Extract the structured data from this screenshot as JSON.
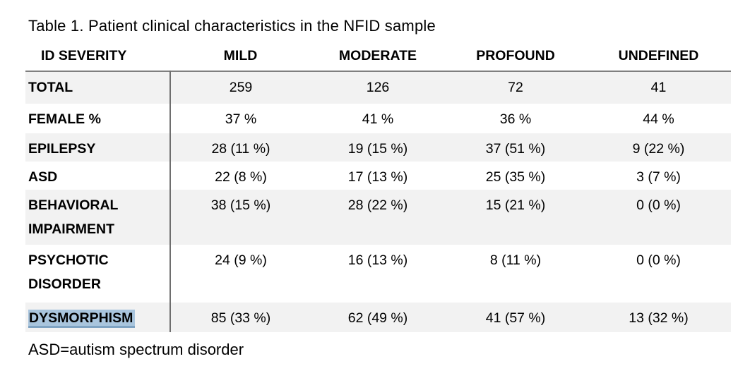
{
  "document": {
    "title": "Table 1. Patient clinical characteristics in the NFID sample",
    "footnote": "ASD=autism spectrum disorder"
  },
  "table": {
    "columns": [
      "ID SEVERITY",
      "MILD",
      "MODERATE",
      "PROFOUND",
      "UNDEFINED"
    ],
    "rows": [
      {
        "label": "TOTAL",
        "values": [
          "259",
          "126",
          "72",
          "41"
        ],
        "shaded": true,
        "highlighted": false
      },
      {
        "label": "FEMALE %",
        "values": [
          "37 %",
          "41 %",
          "36 %",
          "44 %"
        ],
        "shaded": false,
        "highlighted": false
      },
      {
        "label": "EPILEPSY",
        "values": [
          "28 (11 %)",
          "19 (15 %)",
          "37 (51 %)",
          "9 (22 %)"
        ],
        "shaded": true,
        "highlighted": false
      },
      {
        "label": "ASD",
        "values": [
          "22 (8 %)",
          "17 (13 %)",
          "25 (35 %)",
          "3 (7 %)"
        ],
        "shaded": false,
        "highlighted": false
      },
      {
        "label": "BEHAVIORAL IMPAIRMENT",
        "values": [
          "38 (15 %)",
          "28 (22 %)",
          "15 (21 %)",
          "0 (0 %)"
        ],
        "shaded": true,
        "highlighted": false
      },
      {
        "label": "PSYCHOTIC DISORDER",
        "values": [
          "24 (9 %)",
          "16 (13 %)",
          "8 (11 %)",
          "0 (0 %)"
        ],
        "shaded": false,
        "highlighted": false
      },
      {
        "label": "DYSMORPHISM",
        "values": [
          "85 (33 %)",
          "62 (49 %)",
          "41 (57 %)",
          "13 (32 %)"
        ],
        "shaded": true,
        "highlighted": true
      }
    ]
  },
  "colors": {
    "row_shade": "#f2f2f2",
    "table_border": "#7f7f7f",
    "column_divider": "#6e6e6e",
    "highlight_background": "#a9c5dd",
    "highlight_underline": "#7fa3c2"
  }
}
